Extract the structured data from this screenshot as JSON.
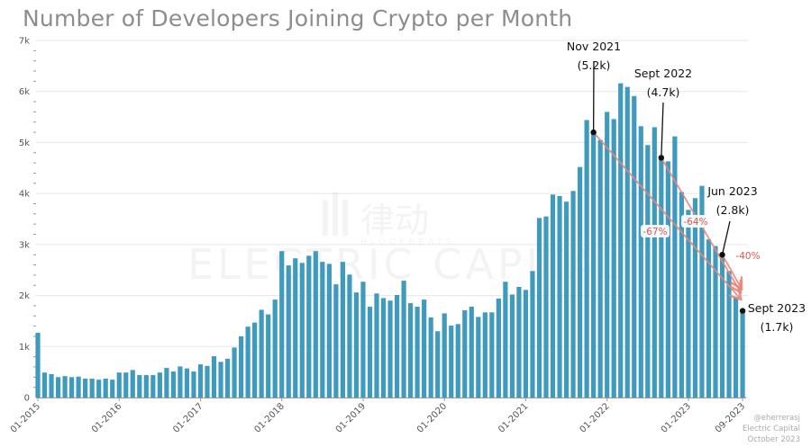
{
  "chart_data": {
    "type": "bar",
    "title": "Number of Developers Joining Crypto per Month",
    "xlabel": "",
    "ylabel": "",
    "ylim": [
      0,
      7000
    ],
    "grid": true,
    "color": "#3f9bbd",
    "x_start": "01-2015",
    "x_end": "09-2023",
    "x_tick_labels": [
      "01-2015",
      "01-2016",
      "01-2017",
      "01-2018",
      "01-2019",
      "01-2020",
      "01-2021",
      "01-2022",
      "01-2023",
      "09-2023"
    ],
    "y_tick_labels": [
      "0",
      "1k",
      "2k",
      "3k",
      "4k",
      "5k",
      "6k",
      "7k"
    ],
    "values": [
      1270,
      490,
      460,
      400,
      420,
      400,
      410,
      370,
      370,
      350,
      370,
      350,
      490,
      490,
      540,
      440,
      440,
      440,
      490,
      580,
      510,
      610,
      570,
      510,
      650,
      620,
      810,
      700,
      760,
      980,
      1200,
      1390,
      1470,
      1720,
      1630,
      1920,
      2870,
      2590,
      2730,
      2640,
      2780,
      2870,
      2660,
      2620,
      2220,
      2660,
      2410,
      2060,
      2270,
      1780,
      2040,
      1950,
      1900,
      2010,
      2290,
      1850,
      1780,
      1920,
      1570,
      1300,
      1650,
      1410,
      1440,
      1710,
      1780,
      1580,
      1670,
      1670,
      1940,
      2270,
      2020,
      2170,
      2110,
      2480,
      3520,
      3550,
      3980,
      3950,
      3840,
      4050,
      4520,
      5440,
      5200,
      5050,
      5600,
      5460,
      6160,
      6090,
      5910,
      5320,
      4950,
      5300,
      4700,
      4630,
      5120,
      4030,
      3680,
      3910,
      4150,
      3100,
      2970,
      2800,
      2480,
      1970,
      1700
    ],
    "annotations": [
      {
        "label": "Nov 2021",
        "value_label": "(5.2k)",
        "month": "11-2021"
      },
      {
        "label": "Sept 2022",
        "value_label": "(4.7k)",
        "month": "09-2022"
      },
      {
        "label": "Jun 2023",
        "value_label": "(2.8k)",
        "month": "06-2023"
      },
      {
        "label": "Sept 2023",
        "value_label": "(1.7k)",
        "month": "09-2023"
      }
    ],
    "changes": [
      {
        "label": "-67%",
        "from": "11-2021",
        "to": "09-2023"
      },
      {
        "label": "-64%",
        "from": "09-2022",
        "to": "09-2023"
      },
      {
        "label": "-40%",
        "from": "06-2023",
        "to": "09-2023"
      }
    ],
    "annotation_color": "#e8867c"
  },
  "watermark": {
    "cn": "律动",
    "en": "BLOCKBEATS",
    "brand": "ELECTRIC CAPITAL"
  },
  "footer": {
    "handle": "@eherrerasj",
    "source": "Electric Capital",
    "date": "October 2023"
  }
}
